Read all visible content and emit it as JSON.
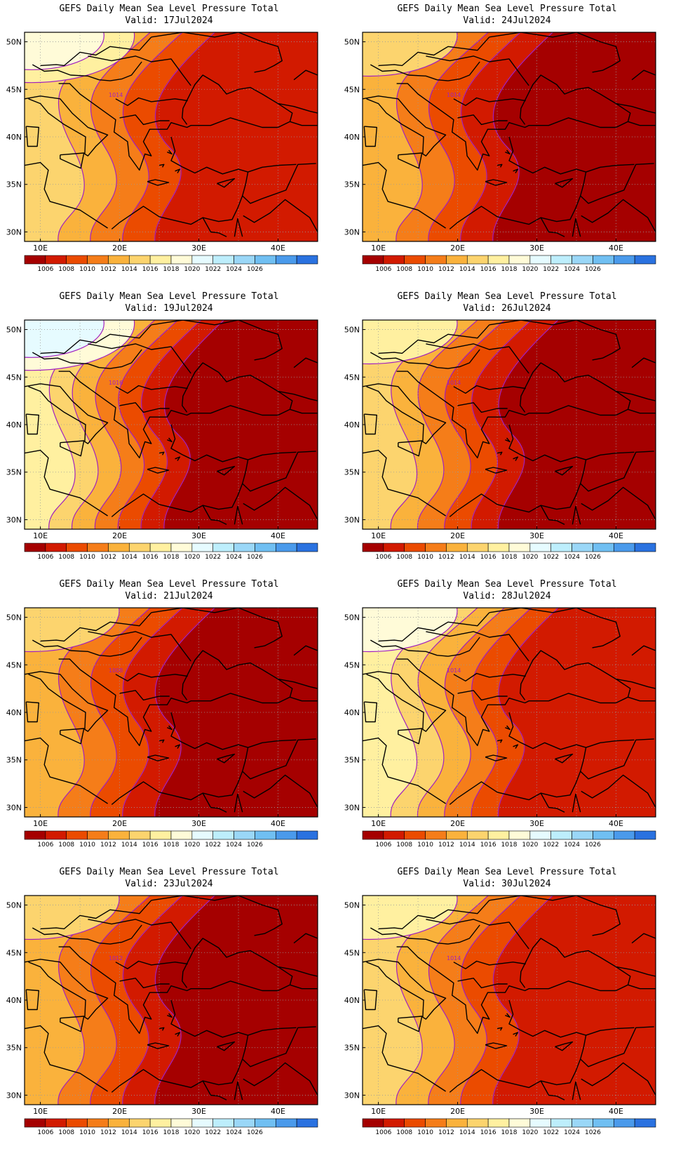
{
  "colorbar": {
    "colors": [
      "#a50000",
      "#d21a00",
      "#eb4b00",
      "#f57d19",
      "#fab23c",
      "#fcd46e",
      "#fff0a0",
      "#fffbd8",
      "#e6fbff",
      "#bdeefc",
      "#9ad7f7",
      "#70bff2",
      "#4a9aeb",
      "#2a72e0"
    ],
    "labels": [
      "1006",
      "1008",
      "1010",
      "1012",
      "1014",
      "1016",
      "1018",
      "1020",
      "1022",
      "1024",
      "1026"
    ]
  },
  "axes": {
    "lat_labels": [
      "50N",
      "45N",
      "40N",
      "35N",
      "30N"
    ],
    "lon_labels": [
      "10E",
      "20E",
      "30E",
      "40E"
    ]
  },
  "contour_color": "#a020c0",
  "panels": [
    {
      "title": "GEFS Daily Mean Sea Level Pressure Total",
      "valid": "Valid:  17Jul2024",
      "contour_label": "1014",
      "east_level": 1,
      "west_level": 5,
      "north_level": 7
    },
    {
      "title": "GEFS Daily Mean Sea Level Pressure Total",
      "valid": "Valid:  24Jul2024",
      "contour_label": "1014",
      "east_level": 0,
      "west_level": 4,
      "north_level": 5
    },
    {
      "title": "GEFS Daily Mean Sea Level Pressure Total",
      "valid": "Valid:  19Jul2024",
      "contour_label": "1016",
      "east_level": 0,
      "west_level": 6,
      "north_level": 8
    },
    {
      "title": "GEFS Daily Mean Sea Level Pressure Total",
      "valid": "Valid:  26Jul2024",
      "contour_label": "1014",
      "east_level": 0,
      "west_level": 5,
      "north_level": 6
    },
    {
      "title": "GEFS Daily Mean Sea Level Pressure Total",
      "valid": "Valid:  21Jul2024",
      "contour_label": "1008",
      "east_level": 0,
      "west_level": 4,
      "north_level": 5
    },
    {
      "title": "GEFS Daily Mean Sea Level Pressure Total",
      "valid": "Valid:  28Jul2024",
      "contour_label": "1014",
      "east_level": 1,
      "west_level": 6,
      "north_level": 7
    },
    {
      "title": "GEFS Daily Mean Sea Level Pressure Total",
      "valid": "Valid:  23Jul2024",
      "contour_label": "1012",
      "east_level": 0,
      "west_level": 4,
      "north_level": 5
    },
    {
      "title": "GEFS Daily Mean Sea Level Pressure Total",
      "valid": "Valid:  30Jul2024",
      "contour_label": "1014",
      "east_level": 1,
      "west_level": 5,
      "north_level": 6
    }
  ]
}
